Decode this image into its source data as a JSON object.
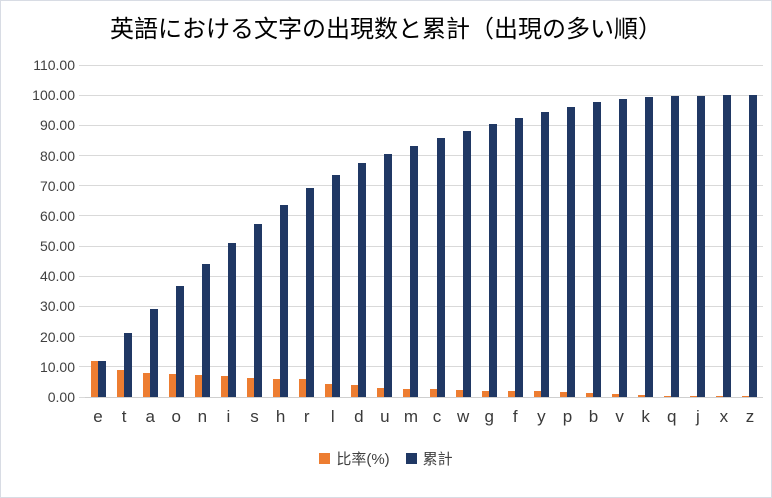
{
  "chart": {
    "title": "英語における文字の出現数と累計（出現の多い順）"
  },
  "chart_data": {
    "type": "bar",
    "title": "英語における文字の出現数と累計（出現の多い順）",
    "categories": [
      "e",
      "t",
      "a",
      "o",
      "n",
      "i",
      "s",
      "h",
      "r",
      "l",
      "d",
      "u",
      "m",
      "c",
      "w",
      "g",
      "f",
      "y",
      "p",
      "b",
      "v",
      "k",
      "q",
      "j",
      "x",
      "z"
    ],
    "series": [
      {
        "name": "比率(%)",
        "color": "#ED7D31",
        "values": [
          12.02,
          9.1,
          8.12,
          7.68,
          7.31,
          6.95,
          6.28,
          6.02,
          5.92,
          4.32,
          3.98,
          2.88,
          2.71,
          2.61,
          2.3,
          2.11,
          2.09,
          2.03,
          1.82,
          1.49,
          1.11,
          0.69,
          0.17,
          0.11,
          0.1,
          0.07
        ]
      },
      {
        "name": "累計",
        "color": "#203864",
        "values": [
          12.02,
          21.12,
          29.24,
          36.92,
          44.23,
          51.18,
          57.46,
          63.48,
          69.4,
          73.72,
          77.7,
          80.58,
          83.29,
          85.9,
          88.2,
          90.31,
          92.4,
          94.43,
          96.25,
          97.74,
          98.85,
          99.54,
          99.71,
          99.82,
          99.92,
          99.99
        ]
      }
    ],
    "xlabel": "",
    "ylabel": "",
    "ylim": [
      0,
      110
    ],
    "ytick_step": 10,
    "ytick_labels": [
      "0.00",
      "10.00",
      "20.00",
      "30.00",
      "40.00",
      "50.00",
      "60.00",
      "70.00",
      "80.00",
      "90.00",
      "100.00",
      "110.00"
    ],
    "grid": true,
    "legend_position": "bottom"
  },
  "colors": {
    "gridline": "#d9d9d9",
    "axis_line": "#cfcfcf",
    "axis_text": "#404040",
    "border": "#d8dce4"
  }
}
